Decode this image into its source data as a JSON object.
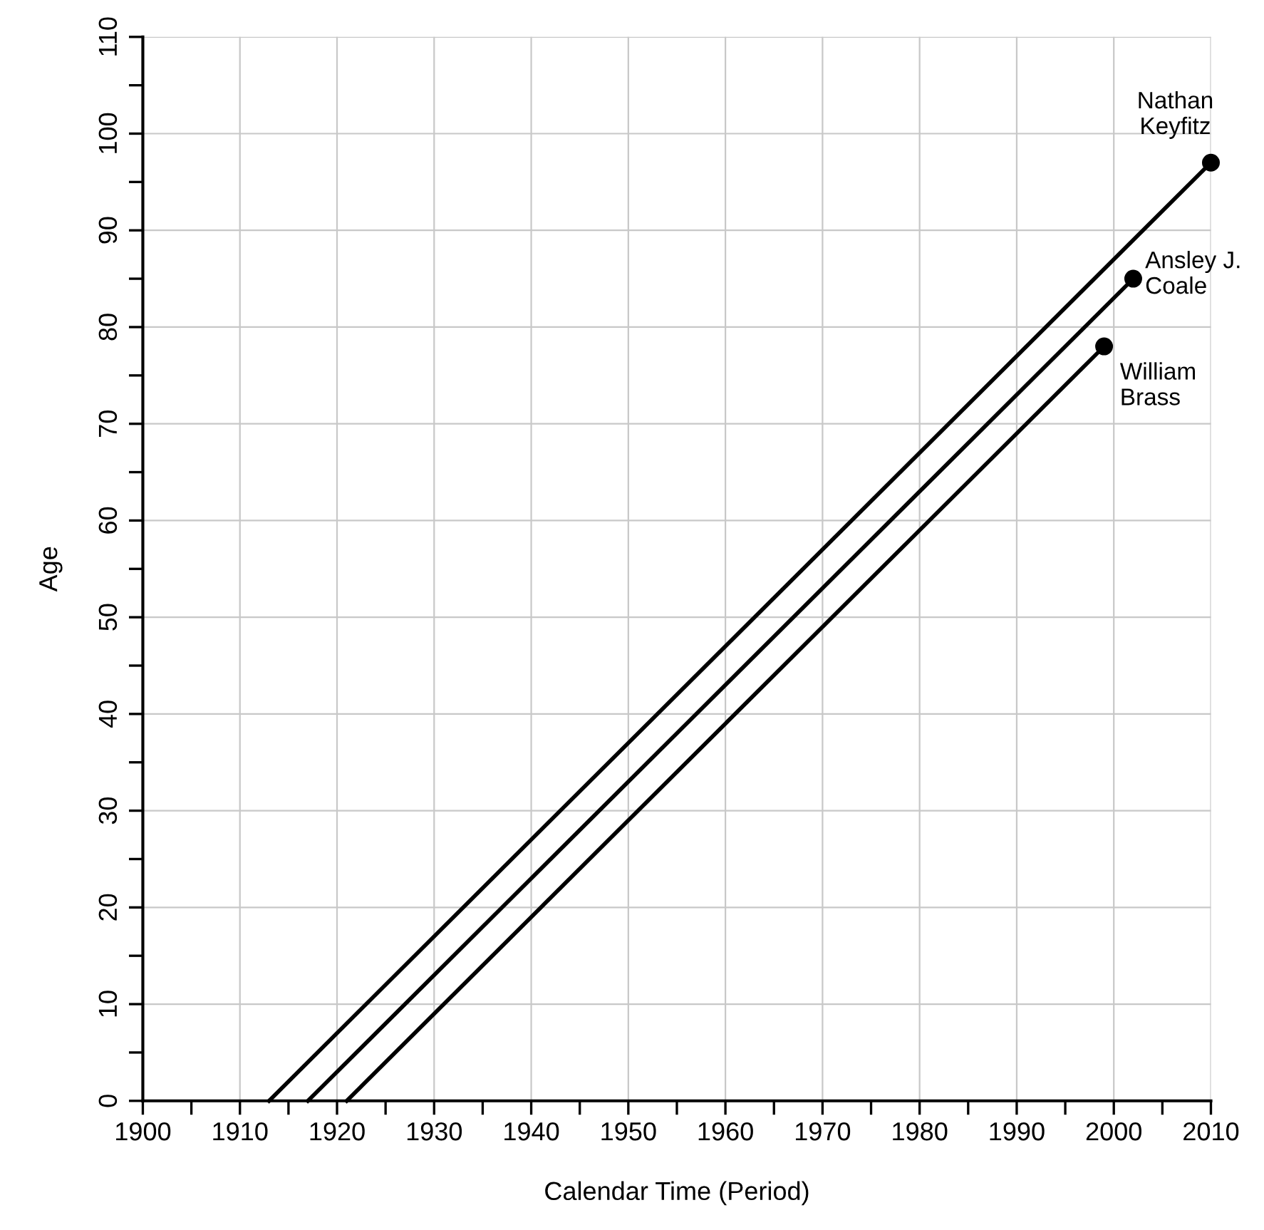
{
  "chart_data": {
    "type": "line",
    "xlabel": "Calendar Time (Period)",
    "ylabel": "Age",
    "xlim": [
      1900,
      2010
    ],
    "ylim": [
      0,
      110
    ],
    "xticks": [
      1900,
      {
        "value": 1905,
        "label": null
      },
      1910,
      {
        "value": 1915,
        "label": null
      },
      1920,
      {
        "value": 1925,
        "label": null
      },
      1930,
      {
        "value": 1935,
        "label": null
      },
      1940,
      {
        "value": 1945,
        "label": null
      },
      1950,
      {
        "value": 1955,
        "label": null
      },
      1960,
      {
        "value": 1965,
        "label": null
      },
      1970,
      {
        "value": 1975,
        "label": null
      },
      1980,
      {
        "value": 1985,
        "label": null
      },
      1990,
      {
        "value": 1995,
        "label": null
      },
      2000,
      {
        "value": 2005,
        "label": null
      },
      2010
    ],
    "yticks": [
      0,
      {
        "value": 5,
        "label": null
      },
      10,
      {
        "value": 15,
        "label": null
      },
      20,
      {
        "value": 25,
        "label": null
      },
      30,
      {
        "value": 35,
        "label": null
      },
      40,
      {
        "value": 45,
        "label": null
      },
      50,
      {
        "value": 55,
        "label": null
      },
      60,
      {
        "value": 65,
        "label": null
      },
      70,
      {
        "value": 75,
        "label": null
      },
      80,
      {
        "value": 85,
        "label": null
      },
      90,
      {
        "value": 95,
        "label": null
      },
      100,
      {
        "value": 105,
        "label": null
      },
      110
    ],
    "grid": true,
    "legend": false,
    "line_style": "solid",
    "series": [
      {
        "name": "Nathan\nKeyfitz",
        "color": "#000000",
        "x": [
          1913,
          2010
        ],
        "values": [
          0,
          97
        ],
        "marker": "circle"
      },
      {
        "name": "Ansley J.\nCoale",
        "color": "#000000",
        "x": [
          1917,
          2002
        ],
        "values": [
          0,
          85
        ],
        "marker": "circle"
      },
      {
        "name": "William\nBrass",
        "color": "#000000",
        "x": [
          1921,
          1999
        ],
        "values": [
          0,
          78
        ],
        "marker": "circle"
      }
    ]
  }
}
